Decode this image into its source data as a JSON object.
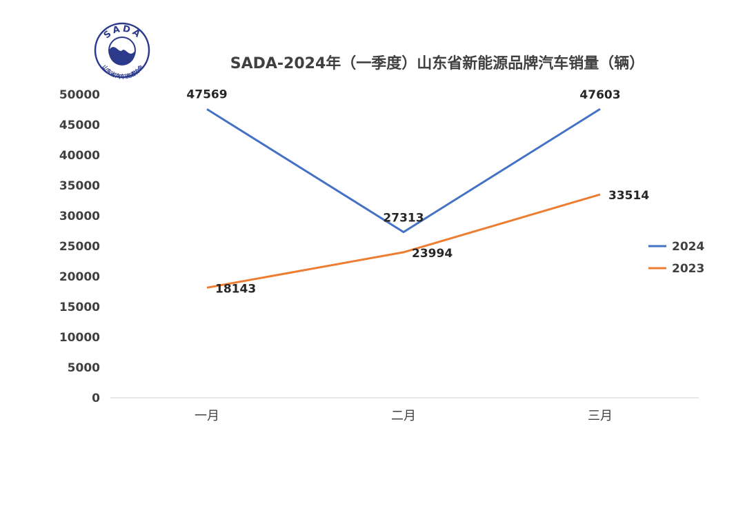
{
  "logo": {
    "top_text": "SADA",
    "bottom_text": "山东省汽车流通协会",
    "color": "#2c3a8c"
  },
  "chart_data": {
    "type": "line",
    "title": "SADA-2024年（一季度）山东省新能源品牌汽车销量（辆）",
    "categories": [
      "一月",
      "二月",
      "三月"
    ],
    "series": [
      {
        "name": "2024",
        "values": [
          47569,
          27313,
          47603
        ],
        "color": "#4472c4"
      },
      {
        "name": "2023",
        "values": [
          18143,
          23994,
          33514
        ],
        "color": "#ed7d31"
      }
    ],
    "ylim": [
      0,
      50000
    ],
    "yticks": [
      0,
      5000,
      10000,
      15000,
      20000,
      25000,
      30000,
      35000,
      40000,
      45000,
      50000
    ],
    "xlabel": "",
    "ylabel": "",
    "grid": false,
    "legend_position": "right"
  }
}
